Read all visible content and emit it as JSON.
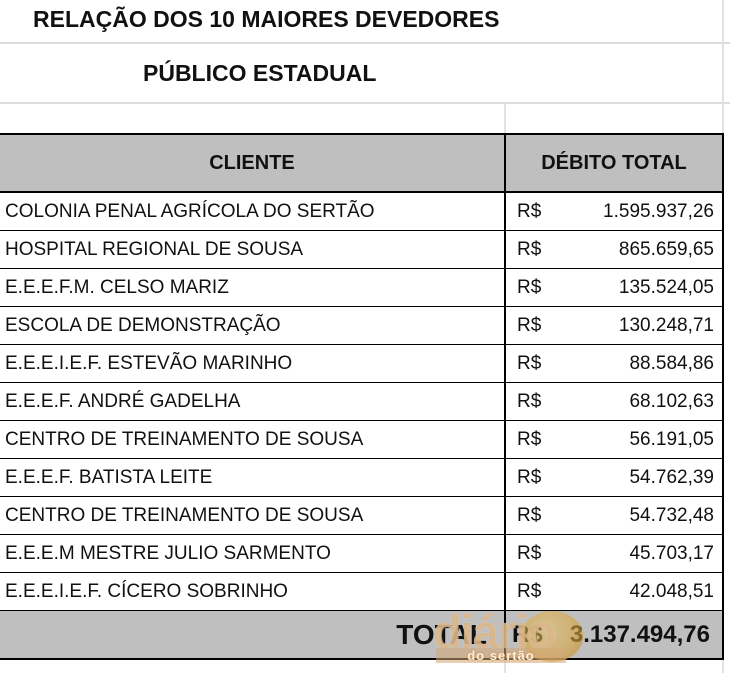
{
  "title": "RELAÇÃO DOS 10 MAIORES DEVEDORES",
  "subtitle": "PÚBLICO ESTADUAL",
  "table": {
    "columns": {
      "client": "CLIENTE",
      "debt": "DÉBITO TOTAL"
    },
    "currency_symbol": "R$",
    "rows": [
      {
        "client": "COLONIA PENAL AGRÍCOLA DO SERTÃO",
        "value": "1.595.937,26"
      },
      {
        "client": "HOSPITAL REGIONAL DE SOUSA",
        "value": "865.659,65"
      },
      {
        "client": "E.E.E.F.M. CELSO MARIZ",
        "value": "135.524,05"
      },
      {
        "client": "ESCOLA DE DEMONSTRAÇÃO",
        "value": "130.248,71"
      },
      {
        "client": "E.E.E.I.E.F. ESTEVÃO MARINHO",
        "value": "88.584,86"
      },
      {
        "client": "E.E.E.F. ANDRÉ GADELHA",
        "value": "68.102,63"
      },
      {
        "client": "CENTRO DE TREINAMENTO DE SOUSA",
        "value": "56.191,05"
      },
      {
        "client": "E.E.E.F. BATISTA LEITE",
        "value": "54.762,39"
      },
      {
        "client": "CENTRO DE TREINAMENTO DE SOUSA",
        "value": "54.732,48"
      },
      {
        "client": "E.E.E.M MESTRE JULIO SARMENTO",
        "value": "45.703,17"
      },
      {
        "client": "E.E.E.I.E.F. CÍCERO SOBRINHO",
        "value": "42.048,51"
      }
    ],
    "total": {
      "label": "TOTAL",
      "value": "3.137.494,76"
    }
  },
  "watermark": {
    "line1": "diário",
    "line2": "do sertão"
  },
  "colors": {
    "header_bg": "#bfbfbf",
    "total_bg": "#bfbfbf",
    "border_dark": "#000000",
    "border_light": "#dcdcdc",
    "watermark_tan": "#d5ac79",
    "watermark_gold": "#d6a43e"
  },
  "chart_data": {
    "type": "table",
    "title": "RELAÇÃO DOS 10 MAIORES DEVEDORES",
    "subtitle": "PÚBLICO ESTADUAL",
    "columns": [
      "CLIENTE",
      "DÉBITO TOTAL"
    ],
    "categories": [
      "COLONIA PENAL AGRÍCOLA DO SERTÃO",
      "HOSPITAL REGIONAL DE SOUSA",
      "E.E.E.F.M. CELSO MARIZ",
      "ESCOLA DE DEMONSTRAÇÃO",
      "E.E.E.I.E.F. ESTEVÃO MARINHO",
      "E.E.E.F. ANDRÉ GADELHA",
      "CENTRO DE TREINAMENTO DE SOUSA",
      "E.E.E.F. BATISTA LEITE",
      "CENTRO DE TREINAMENTO DE SOUSA",
      "E.E.E.M MESTRE JULIO SARMENTO",
      "E.E.E.I.E.F. CÍCERO SOBRINHO"
    ],
    "values": [
      1595937.26,
      865659.65,
      135524.05,
      130248.71,
      88584.86,
      68102.63,
      56191.05,
      54762.39,
      54732.48,
      45703.17,
      42048.51
    ],
    "total": 3137494.76,
    "currency": "R$"
  }
}
